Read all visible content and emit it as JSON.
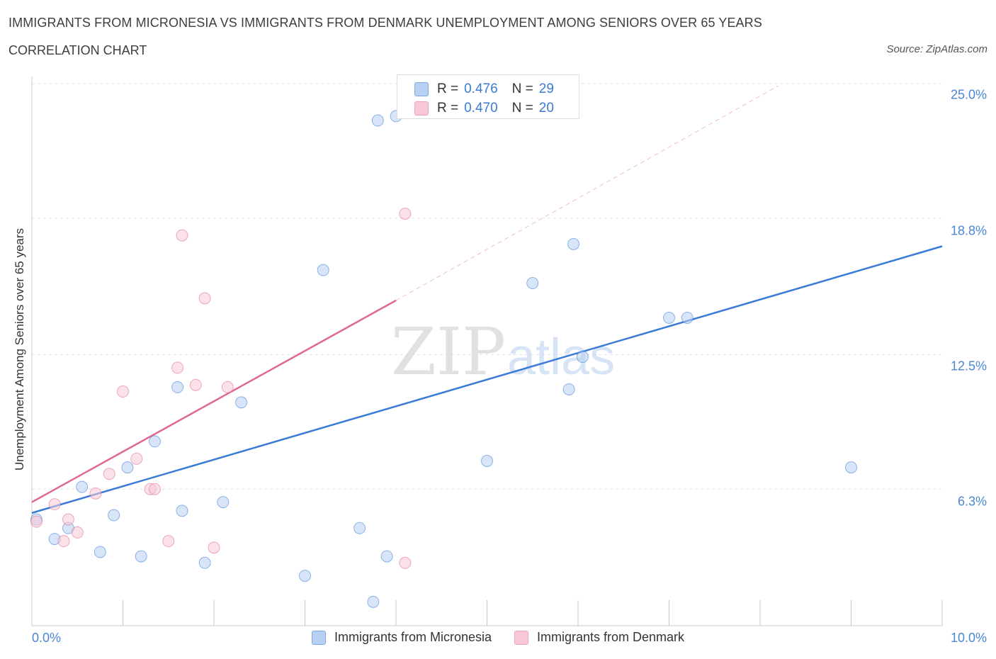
{
  "title": "IMMIGRANTS FROM MICRONESIA VS IMMIGRANTS FROM DENMARK UNEMPLOYMENT AMONG SENIORS OVER 65 YEARS",
  "subtitle": "CORRELATION CHART",
  "source": "Source: ZipAtlas.com",
  "watermark": {
    "zip": "ZIP",
    "atlas": "atlas"
  },
  "legend": {
    "r_label": "R =",
    "n_label": "N =",
    "micronesia": {
      "r": "0.476",
      "n": "29"
    },
    "denmark": {
      "r": "0.470",
      "n": "20"
    }
  },
  "chart_data": {
    "type": "scatter",
    "title": "IMMIGRANTS FROM MICRONESIA VS IMMIGRANTS FROM DENMARK UNEMPLOYMENT AMONG SENIORS OVER 65 YEARS",
    "xlabel": "",
    "ylabel": "Unemployment Among Seniors over 65 years",
    "xlim": [
      0,
      10
    ],
    "ylim": [
      0,
      25
    ],
    "x_tick_labels": [
      "0.0%",
      "10.0%"
    ],
    "y_ticks": [
      6.3,
      12.5,
      18.8,
      25.0
    ],
    "y_tick_labels": [
      "6.3%",
      "12.5%",
      "18.8%",
      "25.0%"
    ],
    "grid": true,
    "series": [
      {
        "name": "Immigrants from Micronesia",
        "color": "#3a7bd5",
        "fill": "#b8d0f3",
        "points": [
          [
            0.05,
            4.9
          ],
          [
            0.25,
            4.0
          ],
          [
            0.4,
            4.5
          ],
          [
            0.55,
            6.4
          ],
          [
            0.75,
            3.4
          ],
          [
            0.9,
            5.1
          ],
          [
            1.05,
            7.3
          ],
          [
            1.2,
            3.2
          ],
          [
            1.35,
            8.5
          ],
          [
            1.6,
            11.0
          ],
          [
            1.65,
            5.3
          ],
          [
            1.9,
            2.9
          ],
          [
            2.1,
            5.7
          ],
          [
            2.3,
            10.3
          ],
          [
            3.0,
            2.3
          ],
          [
            3.2,
            16.4
          ],
          [
            3.6,
            4.5
          ],
          [
            3.75,
            1.1
          ],
          [
            3.9,
            3.2
          ],
          [
            3.8,
            23.3
          ],
          [
            4.0,
            23.5
          ],
          [
            5.0,
            7.6
          ],
          [
            5.5,
            15.8
          ],
          [
            5.9,
            10.9
          ],
          [
            5.95,
            17.6
          ],
          [
            6.05,
            12.4
          ],
          [
            7.0,
            14.2
          ],
          [
            7.2,
            14.2
          ],
          [
            9.0,
            7.3
          ]
        ],
        "trend": {
          "x": [
            0,
            10
          ],
          "y": [
            5.2,
            17.5
          ],
          "style": "solid"
        }
      },
      {
        "name": "Immigrants from Denmark",
        "color": "#e0678f",
        "fill": "#f8c8d6",
        "points": [
          [
            0.05,
            4.8
          ],
          [
            0.25,
            5.6
          ],
          [
            0.35,
            3.9
          ],
          [
            0.4,
            4.9
          ],
          [
            0.5,
            4.3
          ],
          [
            0.7,
            6.1
          ],
          [
            0.85,
            7.0
          ],
          [
            1.0,
            10.8
          ],
          [
            1.15,
            7.7
          ],
          [
            1.3,
            6.3
          ],
          [
            1.35,
            6.3
          ],
          [
            1.5,
            3.9
          ],
          [
            1.6,
            11.9
          ],
          [
            1.65,
            18.0
          ],
          [
            1.8,
            11.1
          ],
          [
            1.9,
            15.1
          ],
          [
            2.0,
            3.6
          ],
          [
            2.15,
            11.0
          ],
          [
            4.1,
            2.9
          ],
          [
            4.1,
            19.0
          ]
        ],
        "trend": {
          "x": [
            0,
            4.0
          ],
          "y": [
            5.7,
            15.0
          ],
          "style": "solid"
        },
        "trend_extension": {
          "x": [
            4.0,
            8.2
          ],
          "y": [
            15.0,
            24.9
          ],
          "style": "dashed"
        }
      }
    ]
  }
}
